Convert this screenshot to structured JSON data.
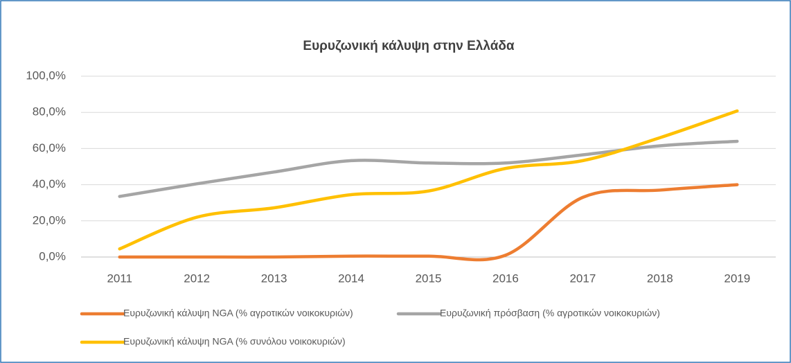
{
  "chart_data": {
    "type": "line",
    "title": "Ευρυζωνική κάλυψη στην Ελλάδα",
    "categories": [
      "2011",
      "2012",
      "2013",
      "2014",
      "2015",
      "2016",
      "2017",
      "2018",
      "2019"
    ],
    "series": [
      {
        "name": "Ευρυζωνική κάλυψη NGA (% αγροτικών νοικοκυριών)",
        "color": "#ed7d31",
        "values": [
          0,
          0,
          0,
          0.5,
          0.5,
          1,
          33,
          37,
          40
        ]
      },
      {
        "name": "Ευρυζωνική πρόσβαση (% αγροτικών νοικοκυριών)",
        "color": "#a5a5a5",
        "values": [
          33.5,
          40.5,
          47,
          53.3,
          52,
          52,
          56.5,
          61.5,
          64
        ]
      },
      {
        "name": "Ευρυζωνική κάλυψη NGA (% συνόλου νοικοκυριών)",
        "color": "#ffc000",
        "values": [
          4.5,
          22,
          27.2,
          34.5,
          36.5,
          49,
          53.3,
          66,
          80.8
        ]
      }
    ],
    "ylim": [
      0,
      100
    ],
    "yticks": [
      {
        "value": 0,
        "label": "0,0%"
      },
      {
        "value": 20,
        "label": "20,0%"
      },
      {
        "value": 40,
        "label": "40,0%"
      },
      {
        "value": 60,
        "label": "60,0%"
      },
      {
        "value": 80,
        "label": "80,0%"
      },
      {
        "value": 100,
        "label": "100,0%"
      }
    ],
    "grid": true,
    "legend": "bottom"
  }
}
